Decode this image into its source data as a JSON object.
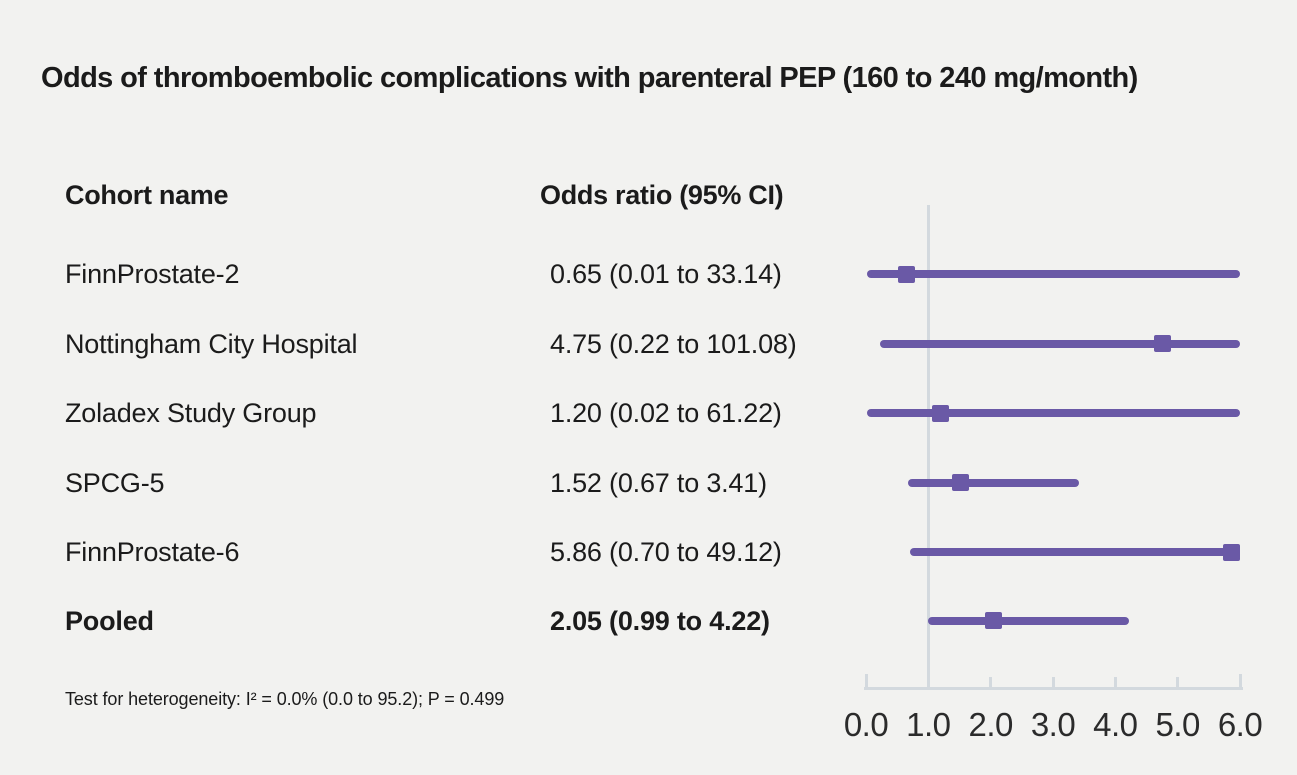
{
  "title": "Odds of thromboembolic complications with parenteral PEP (160 to 240 mg/month)",
  "table": {
    "columns": {
      "cohort": "Cohort name",
      "odds": "Odds ratio (95% CI)"
    }
  },
  "footnote": "Test for heterogeneity: I² = 0.0% (0.0 to 95.2); P = 0.499",
  "colors": {
    "accent": "#6A59A6",
    "axis_line": "#D3D9DE",
    "background": "#F2F2F0",
    "text": "#1B1B1B"
  },
  "chart_data": {
    "type": "forest",
    "title": "Odds of thromboembolic complications with parenteral PEP (160 to 240 mg/month)",
    "xlabel": "",
    "axis": {
      "min": 0.0,
      "max": 6.0,
      "tick_labels": [
        "0.0",
        "1.0",
        "2.0",
        "3.0",
        "4.0",
        "5.0",
        "6.0"
      ],
      "reference_line": 1.0
    },
    "rows": [
      {
        "label": "FinnProstate-2",
        "or": 0.65,
        "ci_low": 0.01,
        "ci_high": 33.14,
        "text": "0.65 (0.01 to 33.14)",
        "pooled": false
      },
      {
        "label": "Nottingham City Hospital",
        "or": 4.75,
        "ci_low": 0.22,
        "ci_high": 101.08,
        "text": "4.75 (0.22 to 101.08)",
        "pooled": false
      },
      {
        "label": "Zoladex Study Group",
        "or": 1.2,
        "ci_low": 0.02,
        "ci_high": 61.22,
        "text": "1.20 (0.02 to 61.22)",
        "pooled": false
      },
      {
        "label": "SPCG-5",
        "or": 1.52,
        "ci_low": 0.67,
        "ci_high": 3.41,
        "text": "1.52 (0.67 to 3.41)",
        "pooled": false
      },
      {
        "label": "FinnProstate-6",
        "or": 5.86,
        "ci_low": 0.7,
        "ci_high": 49.12,
        "text": "5.86 (0.70 to 49.12)",
        "pooled": false
      },
      {
        "label": "Pooled",
        "or": 2.05,
        "ci_low": 0.99,
        "ci_high": 4.22,
        "text": "2.05 (0.99 to 4.22)",
        "pooled": true
      }
    ],
    "heterogeneity": "Test for heterogeneity: I² = 0.0% (0.0 to 95.2); P = 0.499"
  }
}
